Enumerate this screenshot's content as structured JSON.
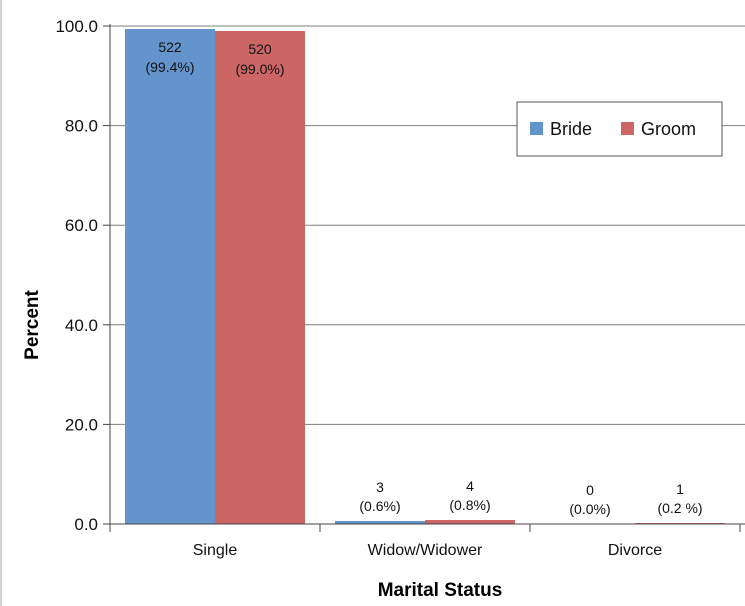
{
  "chart_data": {
    "type": "bar",
    "title": "",
    "xlabel": "Marital Status",
    "ylabel": "Percent",
    "ylim": [
      0,
      100
    ],
    "yticks": [
      "0.0",
      "20.0",
      "40.0",
      "60.0",
      "80.0",
      "100.0"
    ],
    "grid": true,
    "legend_position": "top-right",
    "categories": [
      "Single",
      "Widow/Widower",
      "Divorce"
    ],
    "series": [
      {
        "name": "Bride",
        "color": "#6394cb",
        "values": [
          99.4,
          0.6,
          0.0
        ],
        "labels": [
          [
            "522",
            "(99.4%)"
          ],
          [
            "3",
            "(0.6%)"
          ],
          [
            "0",
            "(0.0%)"
          ]
        ]
      },
      {
        "name": "Groom",
        "color": "#cb6664",
        "values": [
          99.0,
          0.8,
          0.2
        ],
        "labels": [
          [
            "520",
            "(99.0%)"
          ],
          [
            "4",
            "(0.8%)"
          ],
          [
            "1",
            "(0.2 %)"
          ]
        ]
      }
    ]
  }
}
